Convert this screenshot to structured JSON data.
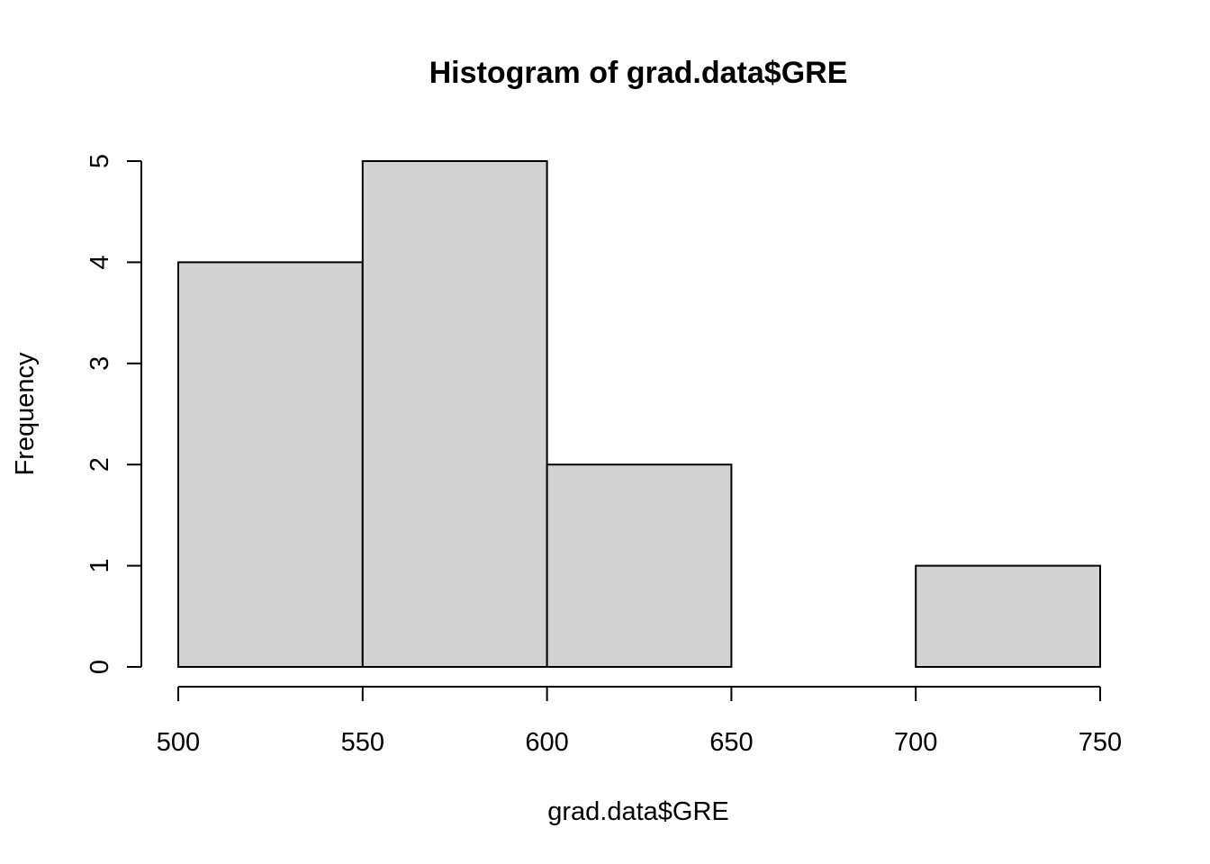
{
  "chart_data": {
    "type": "bar",
    "title": "Histogram of grad.data$GRE",
    "xlabel": "grad.data$GRE",
    "ylabel": "Frequency",
    "bins": [
      {
        "start": 500,
        "end": 550,
        "count": 4
      },
      {
        "start": 550,
        "end": 600,
        "count": 5
      },
      {
        "start": 600,
        "end": 650,
        "count": 2
      },
      {
        "start": 650,
        "end": 700,
        "count": 0
      },
      {
        "start": 700,
        "end": 750,
        "count": 1
      }
    ],
    "xlim": [
      500,
      750
    ],
    "ylim": [
      0,
      5
    ],
    "x_ticks": [
      500,
      550,
      600,
      650,
      700,
      750
    ],
    "y_ticks": [
      0,
      1,
      2,
      3,
      4,
      5
    ],
    "grid": false,
    "legend": "none",
    "colors": {
      "bar_fill": "#d3d3d3",
      "bar_stroke": "#000000"
    }
  }
}
